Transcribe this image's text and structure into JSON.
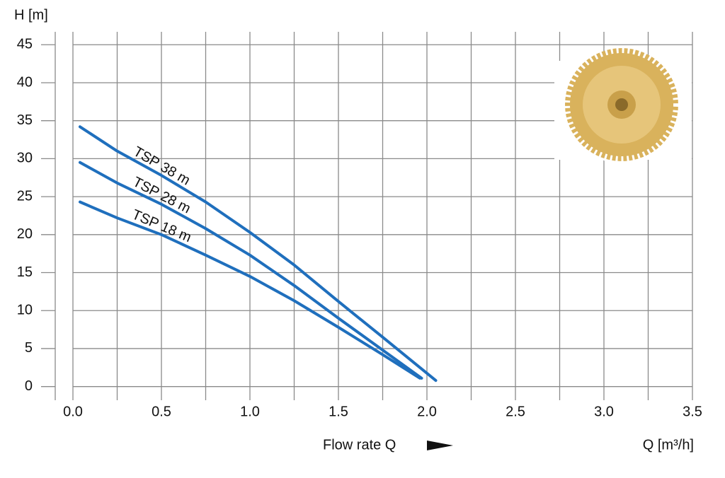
{
  "chart_data": {
    "type": "line",
    "y_label": "H [m]",
    "x_label": "Flow rate Q",
    "x_unit": "Q [m³/h]",
    "xlim": [
      -0.1,
      3.5
    ],
    "ylim": [
      -1.8,
      46.7
    ],
    "xticks": [
      {
        "value": 0,
        "label": "0.0"
      },
      0.5,
      {
        "value": 1,
        "label": "1.0"
      },
      1.5,
      {
        "value": 2,
        "label": "2.0"
      },
      2.5,
      {
        "value": 3,
        "label": "3.0"
      },
      3.5
    ],
    "xgrid": [
      0,
      0.25,
      0.5,
      0.75,
      1,
      1.25,
      1.5,
      1.75,
      2,
      2.25,
      2.5,
      2.75,
      3,
      3.25,
      3.5
    ],
    "yticks": [
      0,
      5,
      10,
      15,
      20,
      25,
      30,
      35,
      40,
      45
    ],
    "grid": true,
    "series": [
      {
        "name": "TSP 38 m",
        "color": "#1f6fbd",
        "x": [
          0.04,
          0.25,
          0.5,
          0.75,
          1.0,
          1.25,
          1.5,
          1.75,
          2.05
        ],
        "values": [
          34.2,
          31,
          27.8,
          24.3,
          20.3,
          16,
          11.2,
          6.5,
          0.8
        ]
      },
      {
        "name": "TSP 28 m",
        "color": "#1f6fbd",
        "x": [
          0.04,
          0.25,
          0.5,
          0.75,
          1.0,
          1.25,
          1.5,
          1.75,
          1.97
        ],
        "values": [
          29.5,
          26.8,
          24,
          20.8,
          17.3,
          13.3,
          9,
          4.8,
          1.1
        ]
      },
      {
        "name": "TSP 18 m",
        "color": "#1f6fbd",
        "x": [
          0.04,
          0.25,
          0.5,
          0.75,
          1.0,
          1.25,
          1.5,
          1.75,
          1.96
        ],
        "values": [
          24.3,
          22.2,
          20,
          17.3,
          14.5,
          11.3,
          7.8,
          4.2,
          1.1
        ]
      }
    ]
  }
}
